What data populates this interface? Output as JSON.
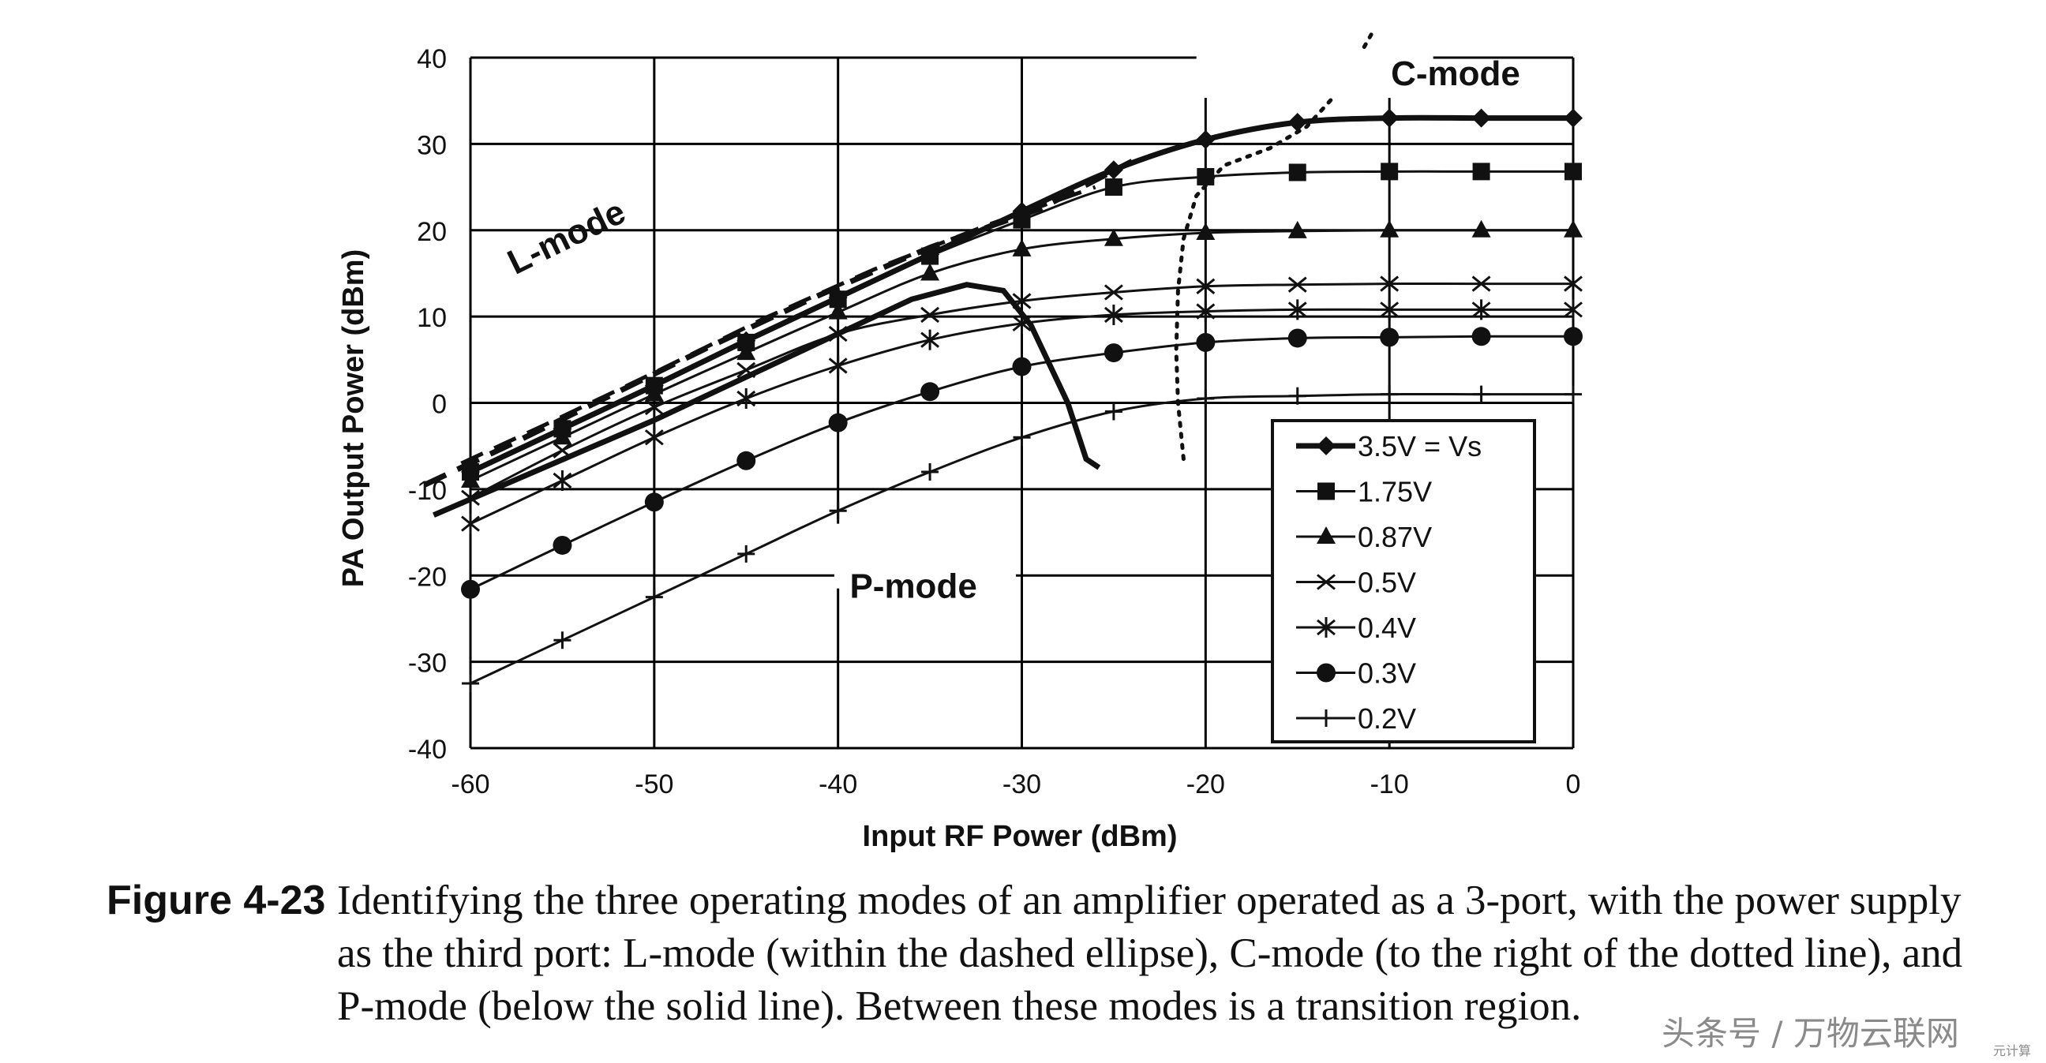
{
  "chart_data": {
    "type": "line",
    "xlabel": "Input RF Power (dBm)",
    "ylabel": "PA Output Power (dBm)",
    "xlim": [
      -60,
      0
    ],
    "ylim": [
      -40,
      40
    ],
    "xticks": [
      -60,
      -50,
      -40,
      -30,
      -20,
      -10,
      0
    ],
    "yticks": [
      -40,
      -30,
      -20,
      -10,
      0,
      10,
      20,
      30,
      40
    ],
    "grid": true,
    "legend_position": "bottom-right",
    "x": [
      -60,
      -55,
      -50,
      -45,
      -40,
      -35,
      -30,
      -25,
      -20,
      -15,
      -10,
      -5,
      0
    ],
    "series": [
      {
        "name": "3.5V = Vs",
        "marker": "diamond",
        "values": [
          -8,
          -3,
          2,
          7.2,
          12.2,
          17.2,
          22.2,
          27,
          30.5,
          32.5,
          33,
          33,
          33
        ]
      },
      {
        "name": "1.75V",
        "marker": "square",
        "values": [
          -8,
          -3,
          2,
          7,
          12,
          17,
          21.2,
          25,
          26.2,
          26.7,
          26.8,
          26.8,
          26.8
        ]
      },
      {
        "name": "0.87V",
        "marker": "triangle",
        "values": [
          -9,
          -4,
          1,
          5.8,
          10.5,
          15,
          17.8,
          19,
          19.7,
          19.9,
          20,
          20,
          20
        ]
      },
      {
        "name": "0.5V",
        "marker": "x",
        "values": [
          -11,
          -5.5,
          -0.5,
          3.8,
          8,
          10.2,
          11.8,
          12.8,
          13.5,
          13.7,
          13.8,
          13.8,
          13.8
        ]
      },
      {
        "name": "0.4V",
        "marker": "star",
        "values": [
          -14,
          -9,
          -4,
          0.5,
          4.3,
          7.3,
          9.2,
          10.2,
          10.6,
          10.8,
          10.8,
          10.8,
          10.8
        ]
      },
      {
        "name": "0.3V",
        "marker": "circle",
        "values": [
          -21.6,
          -16.5,
          -11.5,
          -6.7,
          -2.3,
          1.3,
          4.2,
          5.8,
          7,
          7.5,
          7.6,
          7.7,
          7.7
        ]
      },
      {
        "name": "0.2V",
        "marker": "plus",
        "values": [
          -32.5,
          -27.5,
          -22.5,
          -17.5,
          -12.5,
          -8,
          -4,
          -1,
          0.5,
          0.8,
          1,
          1,
          1
        ]
      }
    ],
    "annotations": [
      {
        "label": "L-mode",
        "region": "dashed ellipse"
      },
      {
        "label": "C-mode",
        "region": "right of dotted line"
      },
      {
        "label": "P-mode",
        "region": "below solid line"
      }
    ]
  },
  "caption": {
    "label": "Figure 4-23",
    "lines": [
      "Identifying the three operating modes of an amplifier operated as a 3-port, with the power supply",
      "as the third port: L-mode (within the dashed ellipse), C-mode (to the right of the dotted line), and",
      "P-mode (below the solid line). Between these modes is a transition region."
    ]
  },
  "watermark": {
    "text": "头条号 / 万物云联网",
    "small": "元计算"
  }
}
